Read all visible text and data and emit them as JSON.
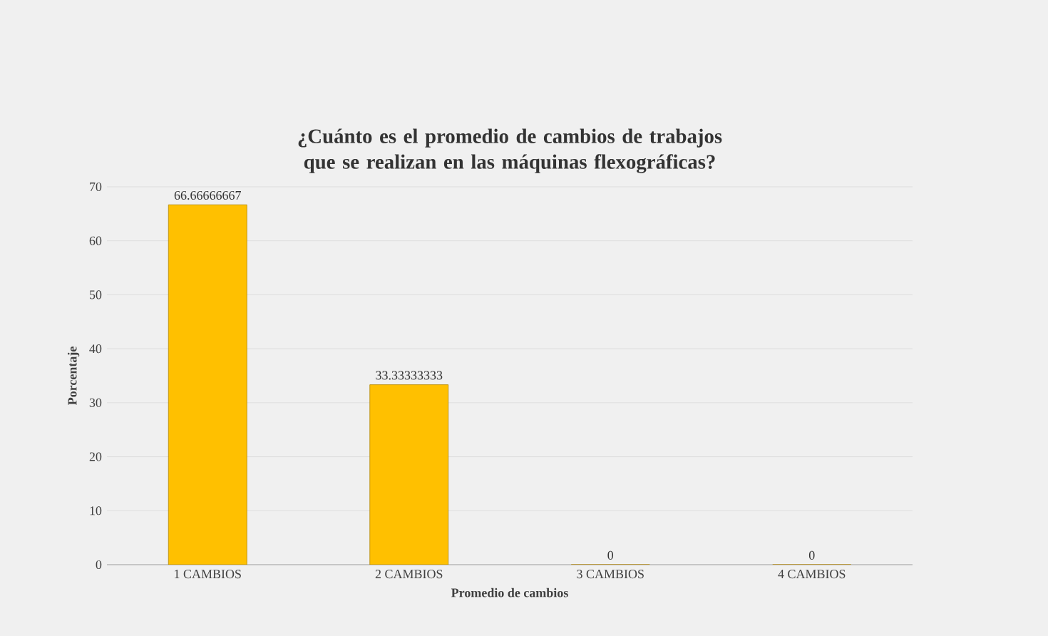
{
  "chart_data": {
    "type": "bar",
    "title": "¿Cuánto es el promedio de cambios de trabajos que se realizan en las máquinas flexográficas?",
    "xlabel": "Promedio de cambios",
    "ylabel": "Porcentaje",
    "categories": [
      "1 CAMBIOS",
      "2 CAMBIOS",
      "3 CAMBIOS",
      "4 CAMBIOS"
    ],
    "values": [
      66.66666667,
      33.33333333,
      0,
      0
    ],
    "color": "#ffc000",
    "ylim": [
      0,
      70
    ],
    "yticks": [
      0,
      10,
      20,
      30,
      40,
      50,
      60,
      70
    ],
    "grid": "y",
    "data_labels": true
  }
}
